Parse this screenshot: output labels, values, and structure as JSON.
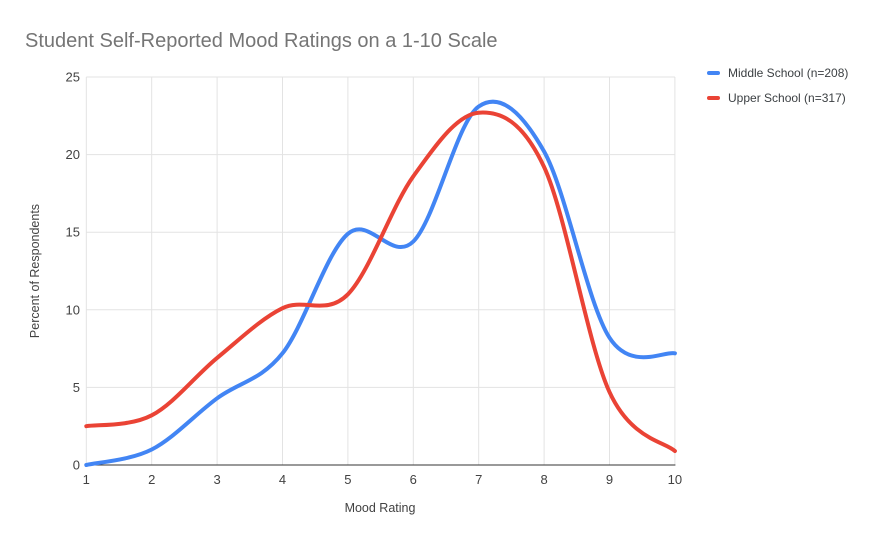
{
  "title": "Student Self-Reported Mood Ratings on a 1-10 Scale",
  "chart_data": {
    "type": "line",
    "smooth": true,
    "title": "Student Self-Reported Mood Ratings on a 1-10 Scale",
    "xlabel": "Mood Rating",
    "ylabel": "Percent of Respondents",
    "x": [
      1,
      2,
      3,
      4,
      5,
      6,
      7,
      8,
      9,
      10
    ],
    "xlim": [
      1,
      10
    ],
    "ylim": [
      0,
      25
    ],
    "yticks": [
      0,
      5,
      10,
      15,
      20,
      25
    ],
    "grid": true,
    "legend_position": "right",
    "series": [
      {
        "name": "Middle School (n=208)",
        "color": "#4285F4",
        "values": [
          0,
          1.0,
          4.3,
          7.2,
          14.9,
          14.4,
          23.1,
          20.2,
          8.2,
          7.2
        ]
      },
      {
        "name": "Upper School (n=317)",
        "color": "#EA4335",
        "values": [
          2.5,
          3.2,
          6.9,
          10.1,
          11.0,
          18.6,
          22.7,
          19.2,
          4.7,
          0.9
        ]
      }
    ]
  },
  "colors": {
    "title_text": "#757575",
    "axis_text": "#424242",
    "legend_text": "#3c4043",
    "gridline": "#e3e3e3",
    "axis_line": "#333333",
    "background": "#ffffff"
  }
}
